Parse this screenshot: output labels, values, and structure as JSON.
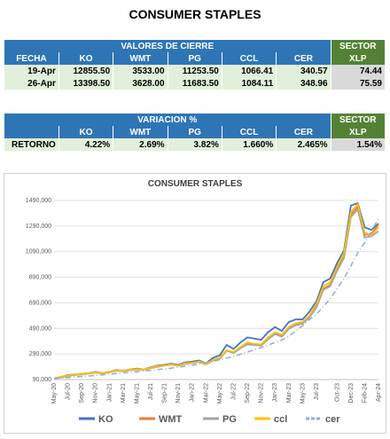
{
  "header": {
    "title": "CONSUMER STAPLES"
  },
  "table1": {
    "group_header": "VALORES DE CIERRE",
    "sector_header": "SECTOR",
    "columns": [
      "FECHA",
      "KO",
      "WMT",
      "PG",
      "CCL",
      "CER",
      "XLP"
    ],
    "rows": [
      [
        "19-Apr",
        "12855.50",
        "3533.00",
        "11253.50",
        "1066.41",
        "340.57",
        "74.44"
      ],
      [
        "26-Apr",
        "13398.50",
        "3628.00",
        "11683.50",
        "1084.11",
        "348.96",
        "75.59"
      ]
    ]
  },
  "table2": {
    "group_header": "VARIACION %",
    "sector_header": "SECTOR",
    "columns": [
      "KO",
      "WMT",
      "PG",
      "CCL",
      "CER",
      "XLP"
    ],
    "rows": [
      [
        "RETORNO",
        "4.22%",
        "2.69%",
        "3.82%",
        "1.660%",
        "2.465%",
        "1.54%"
      ]
    ]
  },
  "chart_data": {
    "type": "line",
    "title": "CONSUMER STAPLES",
    "categories": [
      "May-20",
      null,
      "Jul-20",
      null,
      "Sep-20",
      null,
      "Nov-20",
      null,
      "Jan-21",
      null,
      "Mar-21",
      null,
      "May-21",
      null,
      "Jul-21",
      null,
      "Sep-21",
      null,
      "Nov-21",
      null,
      "Jan-22",
      null,
      "Mar-22",
      null,
      "May-22",
      null,
      "Jul-22",
      null,
      "Sep-22",
      null,
      "Nov-22",
      null,
      "Jan-23",
      null,
      "Mar-23",
      null,
      "May-23",
      null,
      "Jul-23",
      null,
      null,
      "Oct-23",
      null,
      "Dec-23",
      null,
      "Feb-24",
      null,
      "Apr-24"
    ],
    "ylim": [
      90000,
      1490000
    ],
    "yticks": [
      {
        "value": 90000,
        "label": "90,000"
      },
      {
        "value": 290000,
        "label": "290,000"
      },
      {
        "value": 490000,
        "label": "490,000"
      },
      {
        "value": 690000,
        "label": "690,000"
      },
      {
        "value": 890000,
        "label": "890,000"
      },
      {
        "value": 1090000,
        "label": "1090,000"
      },
      {
        "value": 1290000,
        "label": "1290,000"
      },
      {
        "value": 1490000,
        "label": "1490,000"
      }
    ],
    "grid": true,
    "series": [
      {
        "name": "KO",
        "color": "#4472c4",
        "values": [
          100000,
          110000,
          125000,
          130000,
          135000,
          140000,
          150000,
          140000,
          150000,
          165000,
          160000,
          170000,
          175000,
          170000,
          185000,
          200000,
          205000,
          215000,
          205000,
          225000,
          230000,
          240000,
          215000,
          260000,
          280000,
          360000,
          330000,
          380000,
          420000,
          410000,
          400000,
          460000,
          500000,
          470000,
          540000,
          560000,
          560000,
          620000,
          700000,
          850000,
          880000,
          1000000,
          1100000,
          1450000,
          1470000,
          1280000,
          1260000,
          1310000
        ]
      },
      {
        "name": "WMT",
        "color": "#ed7d31",
        "values": [
          100000,
          108000,
          120000,
          128000,
          132000,
          138000,
          145000,
          140000,
          148000,
          160000,
          158000,
          165000,
          170000,
          168000,
          180000,
          190000,
          200000,
          210000,
          200000,
          215000,
          220000,
          230000,
          210000,
          240000,
          255000,
          320000,
          300000,
          340000,
          370000,
          365000,
          360000,
          410000,
          450000,
          430000,
          490000,
          520000,
          530000,
          580000,
          660000,
          800000,
          830000,
          950000,
          1050000,
          1380000,
          1440000,
          1220000,
          1230000,
          1300000
        ]
      },
      {
        "name": "PG",
        "color": "#a5a5a5",
        "values": [
          100000,
          106000,
          118000,
          126000,
          130000,
          136000,
          143000,
          138000,
          146000,
          158000,
          156000,
          163000,
          168000,
          166000,
          178000,
          192000,
          198000,
          205000,
          198000,
          212000,
          218000,
          228000,
          208000,
          238000,
          250000,
          315000,
          298000,
          335000,
          365000,
          360000,
          355000,
          405000,
          445000,
          425000,
          485000,
          515000,
          525000,
          575000,
          650000,
          790000,
          820000,
          940000,
          1040000,
          1360000,
          1420000,
          1200000,
          1210000,
          1250000
        ]
      },
      {
        "name": "ccl",
        "color": "#ffc000",
        "values": [
          100000,
          112000,
          122000,
          130000,
          134000,
          140000,
          147000,
          140000,
          150000,
          162000,
          160000,
          168000,
          172000,
          170000,
          182000,
          195000,
          200000,
          208000,
          200000,
          218000,
          222000,
          232000,
          210000,
          245000,
          260000,
          320000,
          305000,
          345000,
          380000,
          370000,
          365000,
          420000,
          460000,
          440000,
          500000,
          530000,
          540000,
          590000,
          680000,
          820000,
          850000,
          970000,
          1080000,
          1400000,
          1460000,
          1240000,
          1220000,
          1280000
        ]
      },
      {
        "name": "cer",
        "color": "#8faadc",
        "dash": true,
        "values": [
          100000,
          103000,
          106000,
          110000,
          114000,
          118000,
          122000,
          127000,
          132000,
          137000,
          142000,
          147000,
          152000,
          157000,
          162000,
          168000,
          174000,
          180000,
          187000,
          194000,
          202000,
          211000,
          221000,
          232000,
          245000,
          258000,
          272000,
          288000,
          305000,
          322000,
          340000,
          360000,
          380000,
          400000,
          430000,
          470000,
          510000,
          560000,
          600000,
          660000,
          720000,
          800000,
          880000,
          980000,
          1080000,
          1160000,
          1250000,
          1350000
        ]
      }
    ]
  }
}
